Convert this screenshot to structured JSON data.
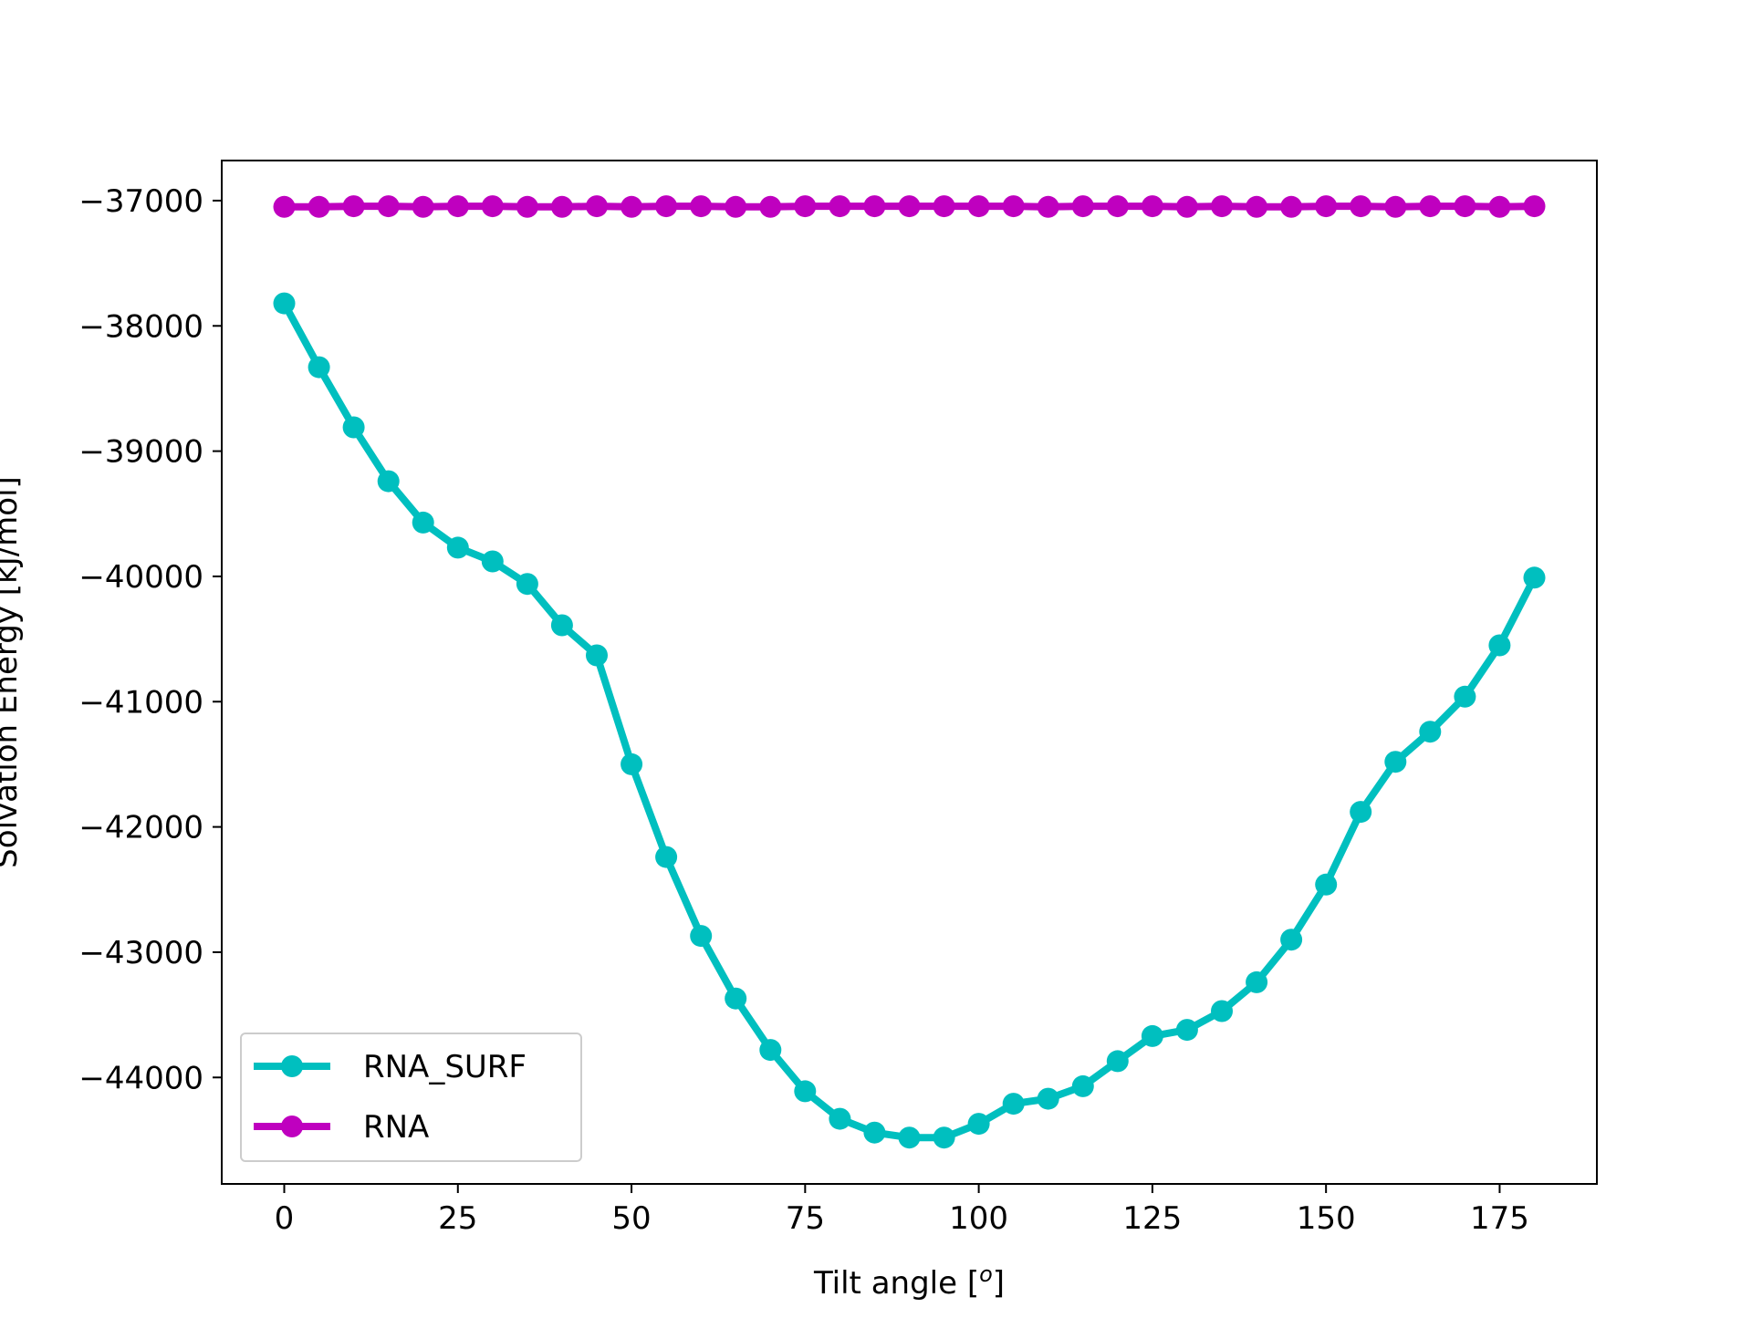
{
  "chart_data": {
    "type": "line",
    "title": "",
    "xlabel": "Tilt angle [°]",
    "xlabel_main": "Tilt angle [",
    "xlabel_sup": "o",
    "xlabel_end": "]",
    "ylabel": "Solvation Energy [kJ/mol]",
    "xlim": [
      -9,
      189
    ],
    "ylim": [
      -44850,
      -36680
    ],
    "x_ticks": [
      0,
      25,
      50,
      75,
      100,
      125,
      150,
      175
    ],
    "x_tick_labels": [
      "0",
      "25",
      "50",
      "75",
      "100",
      "125",
      "150",
      "175"
    ],
    "y_ticks": [
      -37000,
      -38000,
      -39000,
      -40000,
      -41000,
      -42000,
      -43000,
      -44000
    ],
    "y_tick_labels": [
      "−37000",
      "−38000",
      "−39000",
      "−40000",
      "−41000",
      "−42000",
      "−43000",
      "−44000"
    ],
    "grid": false,
    "legend_position": "lower-left",
    "x": [
      0,
      5,
      10,
      15,
      20,
      25,
      30,
      35,
      40,
      45,
      50,
      55,
      60,
      65,
      70,
      75,
      80,
      85,
      90,
      95,
      100,
      105,
      110,
      115,
      120,
      125,
      130,
      135,
      140,
      145,
      150,
      155,
      160,
      165,
      170,
      175,
      180
    ],
    "series": [
      {
        "name": "RNA_SURF",
        "color": "#00bfbf",
        "values": [
          -37820,
          -38330,
          -38810,
          -39240,
          -39570,
          -39770,
          -39880,
          -40060,
          -40390,
          -40630,
          -41500,
          -42240,
          -42870,
          -43370,
          -43780,
          -44110,
          -44330,
          -44440,
          -44480,
          -44480,
          -44370,
          -44210,
          -44170,
          -44070,
          -43870,
          -43670,
          -43620,
          -43470,
          -43240,
          -42900,
          -42460,
          -41880,
          -41480,
          -41240,
          -40960,
          -40550,
          -40010
        ]
      },
      {
        "name": "RNA",
        "color": "#bf00bf",
        "values": [
          -37050,
          -37050,
          -37045,
          -37045,
          -37050,
          -37045,
          -37045,
          -37050,
          -37050,
          -37045,
          -37050,
          -37045,
          -37045,
          -37050,
          -37050,
          -37045,
          -37045,
          -37045,
          -37045,
          -37045,
          -37045,
          -37045,
          -37050,
          -37045,
          -37045,
          -37045,
          -37050,
          -37045,
          -37050,
          -37050,
          -37045,
          -37045,
          -37050,
          -37045,
          -37045,
          -37050,
          -37045
        ]
      }
    ]
  }
}
